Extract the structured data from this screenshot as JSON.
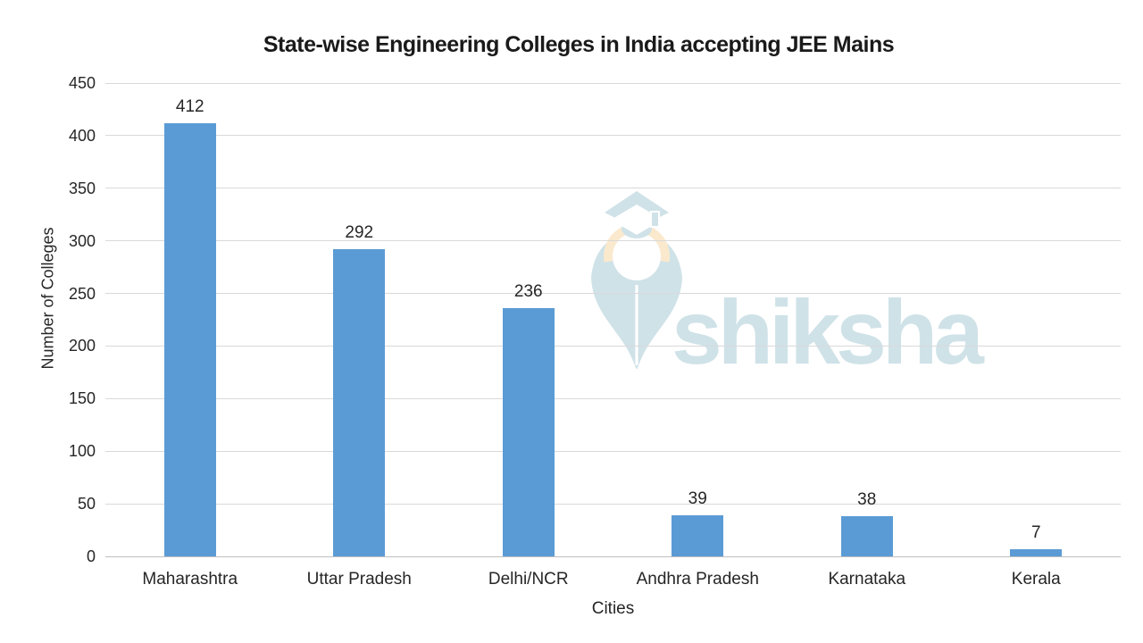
{
  "chart_data": {
    "type": "bar",
    "title": "State-wise Engineering Colleges in India accepting JEE Mains",
    "categories": [
      "Maharashtra",
      "Uttar Pradesh",
      "Delhi/NCR",
      "Andhra Pradesh",
      "Karnataka",
      "Kerala"
    ],
    "values": [
      412,
      292,
      236,
      39,
      38,
      7
    ],
    "xlabel": "Cities",
    "ylabel": "Number of Colleges",
    "ylim": [
      0,
      450
    ],
    "ytick_step": 50,
    "yticks": [
      0,
      50,
      100,
      150,
      200,
      250,
      300,
      350,
      400,
      450
    ],
    "grid": true,
    "legend": "none",
    "bar_color": "#5b9bd5",
    "text_color": "#262626",
    "gridline_color": "#d9d9d9"
  },
  "watermark": {
    "brand": "shiksha",
    "text": "shiksha",
    "icon": "graduation-cap-pen-nib-icon",
    "color": "#cfe2e8",
    "accent_color": "#fbe9cd"
  }
}
